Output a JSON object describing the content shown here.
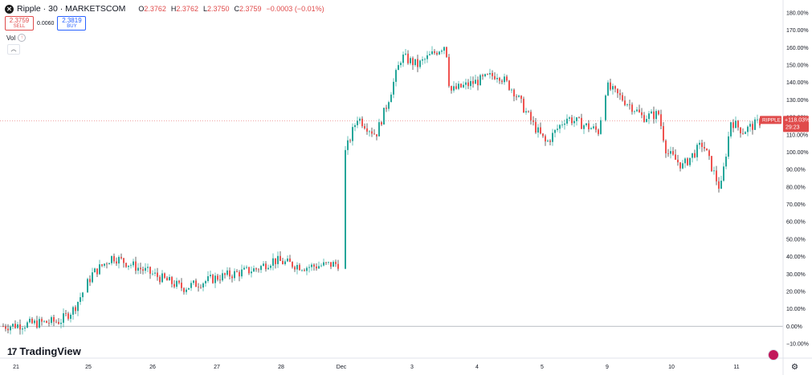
{
  "header": {
    "symbol": "Ripple · 30 · MARKETSCOM",
    "ohlc": [
      {
        "label": "O",
        "value": "2.3762"
      },
      {
        "label": "H",
        "value": "2.3762"
      },
      {
        "label": "L",
        "value": "2.3750"
      },
      {
        "label": "C",
        "value": "2.3759"
      }
    ],
    "change": "−0.0003 (−0.01%)"
  },
  "trade": {
    "sell_price": "2.3759",
    "sell_label": "SELL",
    "spread": "0.0060",
    "buy_price": "2.3819",
    "buy_label": "BUY"
  },
  "volume_label": "Vol",
  "brand": "TradingView",
  "colors": {
    "up": "#26a69a",
    "down": "#ef5350",
    "candle": "#2b2b2b",
    "badge": "#e04b4b"
  },
  "chart_data": {
    "type": "candlestick",
    "y_axis_unit": "percent",
    "ylim": [
      -10,
      180
    ],
    "y_ticks": [
      -10,
      0,
      10,
      20,
      30,
      40,
      50,
      60,
      70,
      80,
      90,
      100,
      110,
      120,
      130,
      140,
      150,
      160,
      170,
      180
    ],
    "x_ticks": [
      "21",
      "25",
      "26",
      "27",
      "28",
      "Dec",
      "3",
      "4",
      "5",
      "9",
      "10",
      "11"
    ],
    "price_badge": {
      "symbol": "RIPPLE",
      "value": 118.03,
      "value_text": "+118.03%",
      "countdown": "29:23"
    },
    "series": [
      {
        "x": "21",
        "close": 0
      },
      {
        "x": "24",
        "close": 3
      },
      {
        "x": "24",
        "close": 10
      },
      {
        "x": "25",
        "close": 30
      },
      {
        "x": "25",
        "close": 40
      },
      {
        "x": "26",
        "close": 32
      },
      {
        "x": "26",
        "close": 22
      },
      {
        "x": "27",
        "close": 28
      },
      {
        "x": "27",
        "close": 33
      },
      {
        "x": "28",
        "close": 38
      },
      {
        "x": "28",
        "close": 34
      },
      {
        "x": "Dec",
        "close": 36
      },
      {
        "x": "Dec",
        "close": 100
      },
      {
        "x": "2",
        "close": 120
      },
      {
        "x": "2",
        "close": 110
      },
      {
        "x": "2",
        "close": 125
      },
      {
        "x": "3",
        "close": 155
      },
      {
        "x": "3",
        "close": 150
      },
      {
        "x": "3",
        "close": 162
      },
      {
        "x": "3",
        "close": 135
      },
      {
        "x": "4",
        "close": 140
      },
      {
        "x": "4",
        "close": 145
      },
      {
        "x": "4",
        "close": 135
      },
      {
        "x": "5",
        "close": 115
      },
      {
        "x": "5",
        "close": 105
      },
      {
        "x": "5",
        "close": 120
      },
      {
        "x": "6",
        "close": 112
      },
      {
        "x": "9",
        "close": 138
      },
      {
        "x": "9",
        "close": 125
      },
      {
        "x": "9",
        "close": 120
      },
      {
        "x": "10",
        "close": 122
      },
      {
        "x": "10",
        "close": 100
      },
      {
        "x": "10",
        "close": 92
      },
      {
        "x": "10",
        "close": 105
      },
      {
        "x": "11",
        "close": 78
      },
      {
        "x": "11",
        "close": 118
      },
      {
        "x": "11",
        "close": 112
      },
      {
        "x": "11",
        "close": 118
      }
    ]
  }
}
